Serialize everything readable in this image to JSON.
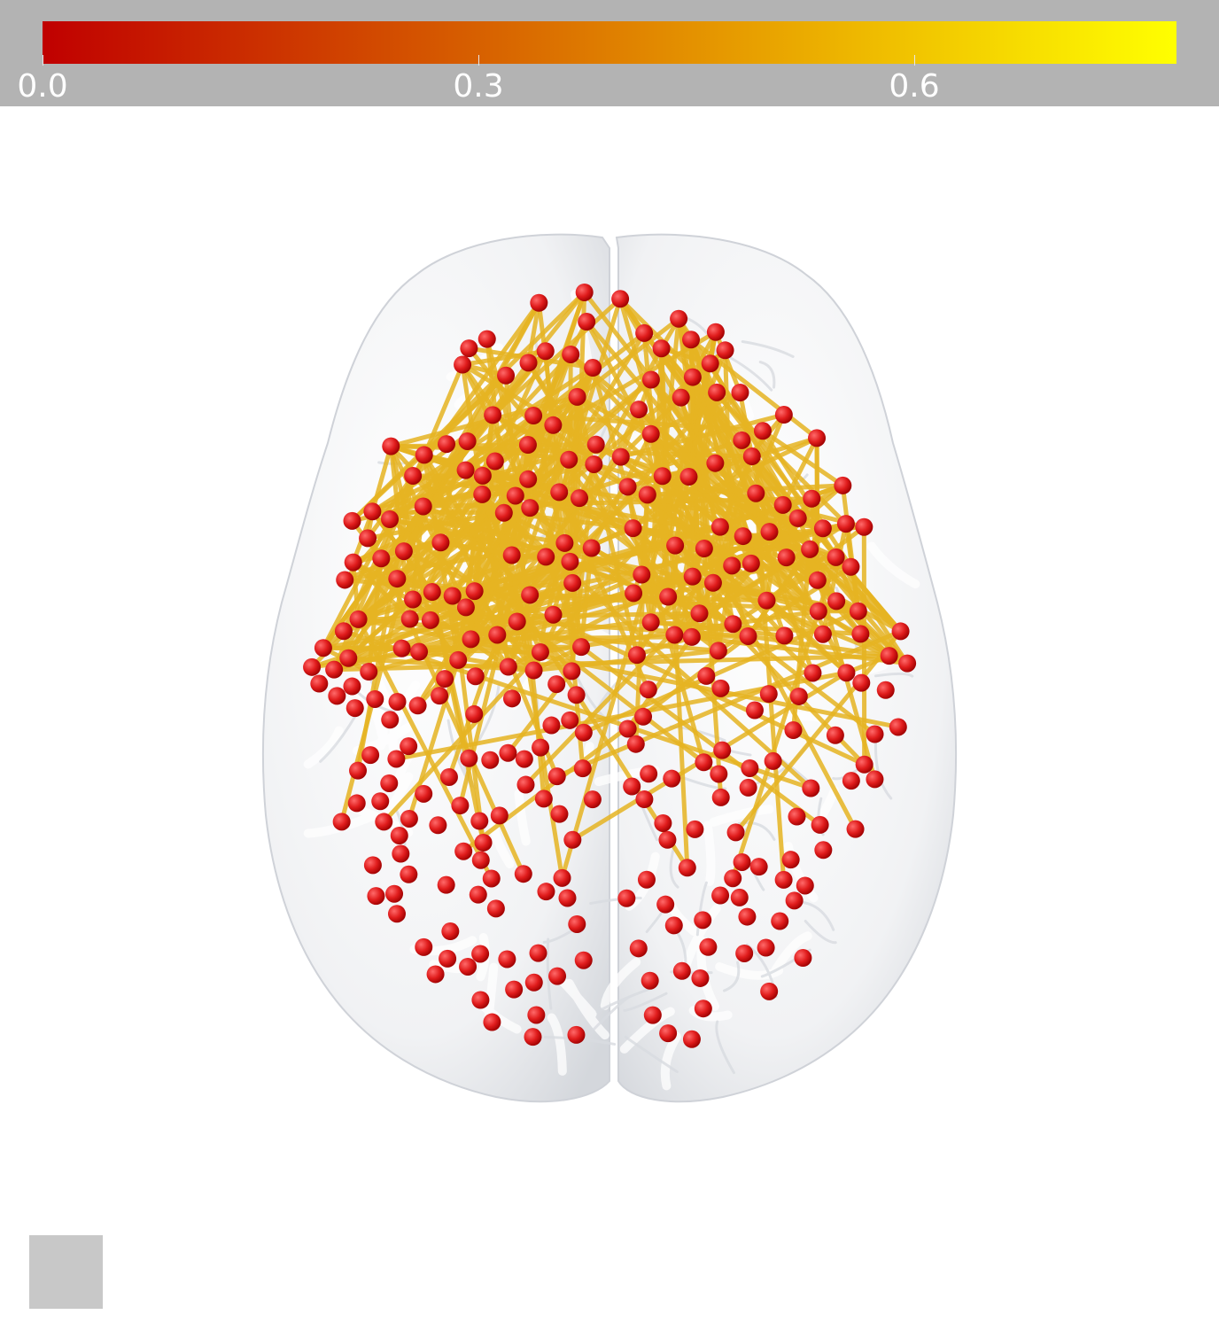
{
  "colorbar": {
    "ticks": [
      {
        "value": 0.0,
        "label": "0.0"
      },
      {
        "value": 0.3,
        "label": "0.3"
      },
      {
        "value": 0.6,
        "label": "0.6"
      }
    ],
    "colors": {
      "low": "#c00000",
      "mid": "#e07800",
      "high": "#ffff00",
      "panel": "#b3b3b3"
    }
  },
  "nodes": {
    "color": "#e02020",
    "count_left": 150,
    "count_right": 150
  },
  "edges": {
    "color": "#e6b422"
  },
  "swatch": {
    "color": "#c8c8c8"
  }
}
